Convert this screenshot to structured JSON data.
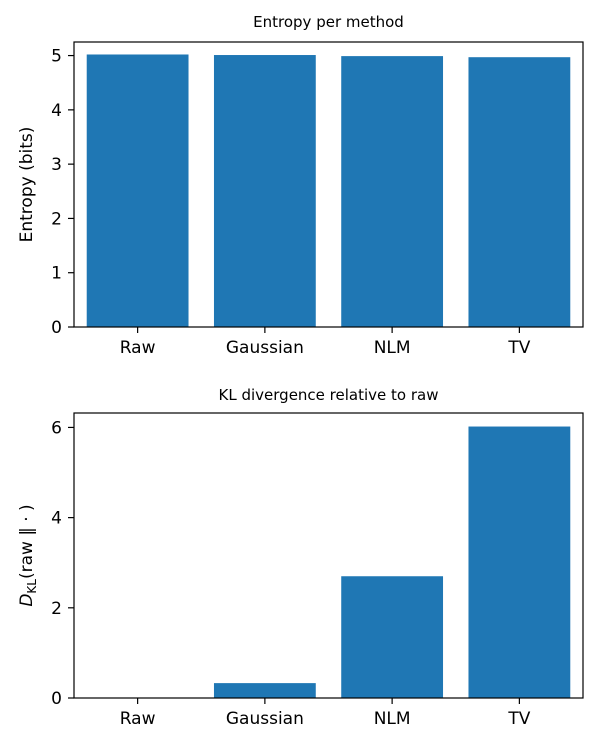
{
  "chart_data": [
    {
      "type": "bar",
      "title": "Entropy per method",
      "xlabel": "",
      "ylabel": "Entropy (bits)",
      "categories": [
        "Raw",
        "Gaussian",
        "NLM",
        "TV"
      ],
      "values": [
        5.02,
        5.01,
        4.99,
        4.97
      ],
      "ylim": [
        0,
        5.25
      ],
      "yticks": [
        0,
        1,
        2,
        3,
        4,
        5
      ],
      "color": "#1f77b4",
      "grid": false
    },
    {
      "type": "bar",
      "title": "KL divergence relative to raw",
      "xlabel": "",
      "ylabel": {
        "main": "D",
        "sub": "KL",
        "rest": "(raw ‖ · )"
      },
      "categories": [
        "Raw",
        "Gaussian",
        "NLM",
        "TV"
      ],
      "values": [
        0.0,
        0.33,
        2.7,
        6.02
      ],
      "ylim": [
        0,
        6.32
      ],
      "yticks": [
        0,
        2,
        4,
        6
      ],
      "color": "#1f77b4",
      "grid": false
    }
  ]
}
